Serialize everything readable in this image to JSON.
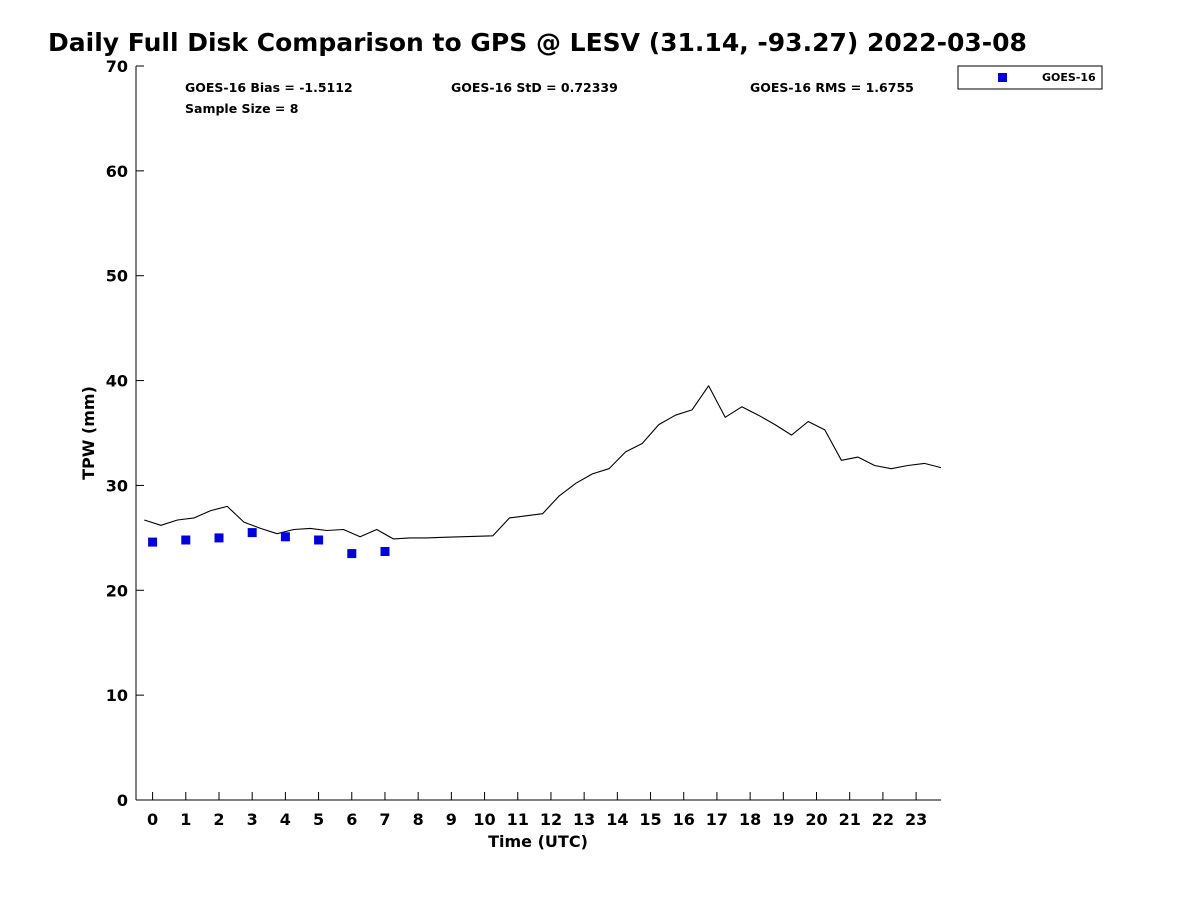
{
  "chart_data": {
    "type": "scatter",
    "title": "Daily Full Disk Comparison to GPS @ LESV (31.14, -93.27) 2022-03-08",
    "xlabel": "Time (UTC)",
    "ylabel": "TPW (mm)",
    "xlim": [
      -0.5,
      23.75
    ],
    "ylim": [
      0,
      70
    ],
    "x_ticks": [
      "0",
      "1",
      "2",
      "3",
      "4",
      "5",
      "6",
      "7",
      "8",
      "9",
      "10",
      "11",
      "12",
      "13",
      "14",
      "15",
      "16",
      "17",
      "18",
      "19",
      "20",
      "21",
      "22",
      "23"
    ],
    "y_ticks": [
      "0",
      "10",
      "20",
      "30",
      "40",
      "50",
      "60",
      "70"
    ],
    "grid": false,
    "legend_position": "top-right, outside plot",
    "stats": {
      "bias": "GOES-16 Bias = -1.5112",
      "std": "GOES-16 StD = 0.72339",
      "rms": "GOES-16 RMS = 1.6755",
      "sample_size": "Sample Size = 8"
    },
    "series": [
      {
        "name": "GOES-16",
        "kind": "scatter",
        "marker": "square",
        "color": "#0000dd",
        "x": [
          0,
          1,
          2,
          3,
          4,
          5,
          6,
          7
        ],
        "y": [
          24.6,
          24.8,
          25.0,
          25.5,
          25.1,
          24.8,
          23.5,
          23.7
        ]
      },
      {
        "kind": "line",
        "color": "#000000",
        "x": [
          -0.25,
          0.25,
          0.75,
          1.25,
          1.75,
          2.25,
          2.75,
          3.25,
          3.75,
          4.25,
          4.75,
          5.25,
          5.75,
          6.25,
          6.75,
          7.25,
          7.75,
          8.25,
          8.75,
          9.25,
          9.75,
          10.25,
          10.75,
          11.25,
          11.75,
          12.25,
          12.75,
          13.25,
          13.75,
          14.25,
          14.75,
          15.25,
          15.75,
          16.25,
          16.75,
          17.25,
          17.75,
          18.25,
          18.75,
          19.25,
          19.75,
          20.25,
          20.75,
          21.25,
          21.75,
          22.25,
          22.75,
          23.25,
          23.75
        ],
        "y": [
          26.7,
          26.2,
          26.7,
          26.9,
          27.6,
          28.0,
          26.5,
          25.9,
          25.4,
          25.8,
          25.9,
          25.7,
          25.8,
          25.1,
          25.8,
          24.9,
          25.0,
          25.0,
          25.05,
          25.1,
          25.15,
          25.2,
          26.9,
          27.1,
          27.3,
          29.0,
          30.2,
          31.1,
          31.6,
          33.2,
          34.0,
          35.8,
          36.7,
          37.2,
          39.5,
          36.5,
          37.5,
          36.7,
          35.8,
          34.8,
          36.1,
          35.3,
          32.4,
          32.7,
          31.9,
          31.6,
          31.9,
          32.1,
          31.7
        ]
      }
    ]
  }
}
